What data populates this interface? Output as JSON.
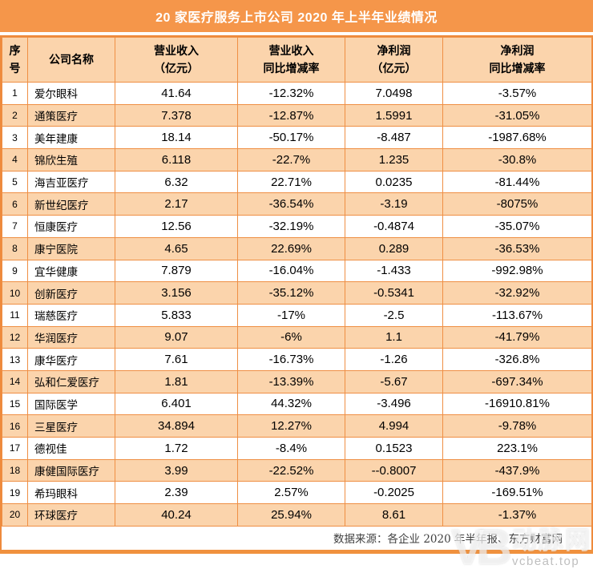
{
  "title": "20 家医疗服务上市公司 2020 年上半年业绩情况",
  "colors": {
    "title_bar_bg": "#F5964A",
    "title_text": "#FFFFFF",
    "header_bg": "#FBD4AC",
    "row_alt_bg": "#FBD4AC",
    "row_bg": "#FFFFFF",
    "grid_border": "#EF8F44",
    "outer_border": "#EE8A3C",
    "bottom_bar": "#F0913E",
    "body_text": "#000000",
    "source_text": "#3F3F3F",
    "watermark_text": "#FFFFFF",
    "watermark_domain_text": "#AFAFAF"
  },
  "header": {
    "cells": [
      {
        "l1": "序",
        "l2": "号"
      },
      {
        "l1": "公司名称",
        "l2": ""
      },
      {
        "l1": "营业收入",
        "l2": "（亿元）"
      },
      {
        "l1": "营业收入",
        "l2": "同比增减率"
      },
      {
        "l1": "净利润",
        "l2": "（亿元）"
      },
      {
        "l1": "净利润",
        "l2": "同比增减率"
      }
    ]
  },
  "chart_data": {
    "type": "table",
    "title": "20 家医疗服务上市公司 2020 年上半年业绩情况",
    "columns": [
      "序号",
      "公司名称",
      "营业收入（亿元）",
      "营业收入同比增减率",
      "净利润（亿元）",
      "净利润同比增减率"
    ],
    "rows": [
      [
        "1",
        "爱尔眼科",
        "41.64",
        "-12.32%",
        "7.0498",
        "-3.57%"
      ],
      [
        "2",
        "通策医疗",
        "7.378",
        "-12.87%",
        "1.5991",
        "-31.05%"
      ],
      [
        "3",
        "美年建康",
        "18.14",
        "-50.17%",
        "-8.487",
        "-1987.68%"
      ],
      [
        "4",
        "锦欣生殖",
        "6.118",
        "-22.7%",
        "1.235",
        "-30.8%"
      ],
      [
        "5",
        "海吉亚医疗",
        "6.32",
        "22.71%",
        "0.0235",
        "-81.44%"
      ],
      [
        "6",
        "新世纪医疗",
        "2.17",
        "-36.54%",
        "-3.19",
        "-8075%"
      ],
      [
        "7",
        "恒康医疗",
        "12.56",
        "-32.19%",
        "-0.4874",
        "-35.07%"
      ],
      [
        "8",
        "康宁医院",
        "4.65",
        "22.69%",
        "0.289",
        "-36.53%"
      ],
      [
        "9",
        "宜华健康",
        "7.879",
        "-16.04%",
        "-1.433",
        "-992.98%"
      ],
      [
        "10",
        "创新医疗",
        "3.156",
        "-35.12%",
        "-0.5341",
        "-32.92%"
      ],
      [
        "11",
        "瑞慈医疗",
        "5.833",
        "-17%",
        "-2.5",
        "-113.67%"
      ],
      [
        "12",
        "华润医疗",
        "9.07",
        "-6%",
        "1.1",
        "-41.79%"
      ],
      [
        "13",
        "康华医疗",
        "7.61",
        "-16.73%",
        "-1.26",
        "-326.8%"
      ],
      [
        "14",
        "弘和仁爱医疗",
        "1.81",
        "-13.39%",
        "-5.67",
        "-697.34%"
      ],
      [
        "15",
        "国际医学",
        "6.401",
        "44.32%",
        "-3.496",
        "-16910.81%"
      ],
      [
        "16",
        "三星医疗",
        "34.894",
        "12.27%",
        "4.994",
        "-9.78%"
      ],
      [
        "17",
        "德视佳",
        "1.72",
        "-8.4%",
        "0.1523",
        "223.1%"
      ],
      [
        "18",
        "康健国际医疗",
        "3.99",
        "-22.52%",
        "--0.8007",
        "-437.9%"
      ],
      [
        "19",
        "希玛眼科",
        "2.39",
        "2.57%",
        "-0.2025",
        "-169.51%"
      ],
      [
        "20",
        "环球医疗",
        "40.24",
        "25.94%",
        "8.61",
        "-1.37%"
      ]
    ]
  },
  "footer": {
    "source_text": "数据来源：各企业 2020 年半年报、东方财富网"
  },
  "watermark": {
    "logo": "VB",
    "brand": "动脉网",
    "domain": "vcbeat.top"
  }
}
